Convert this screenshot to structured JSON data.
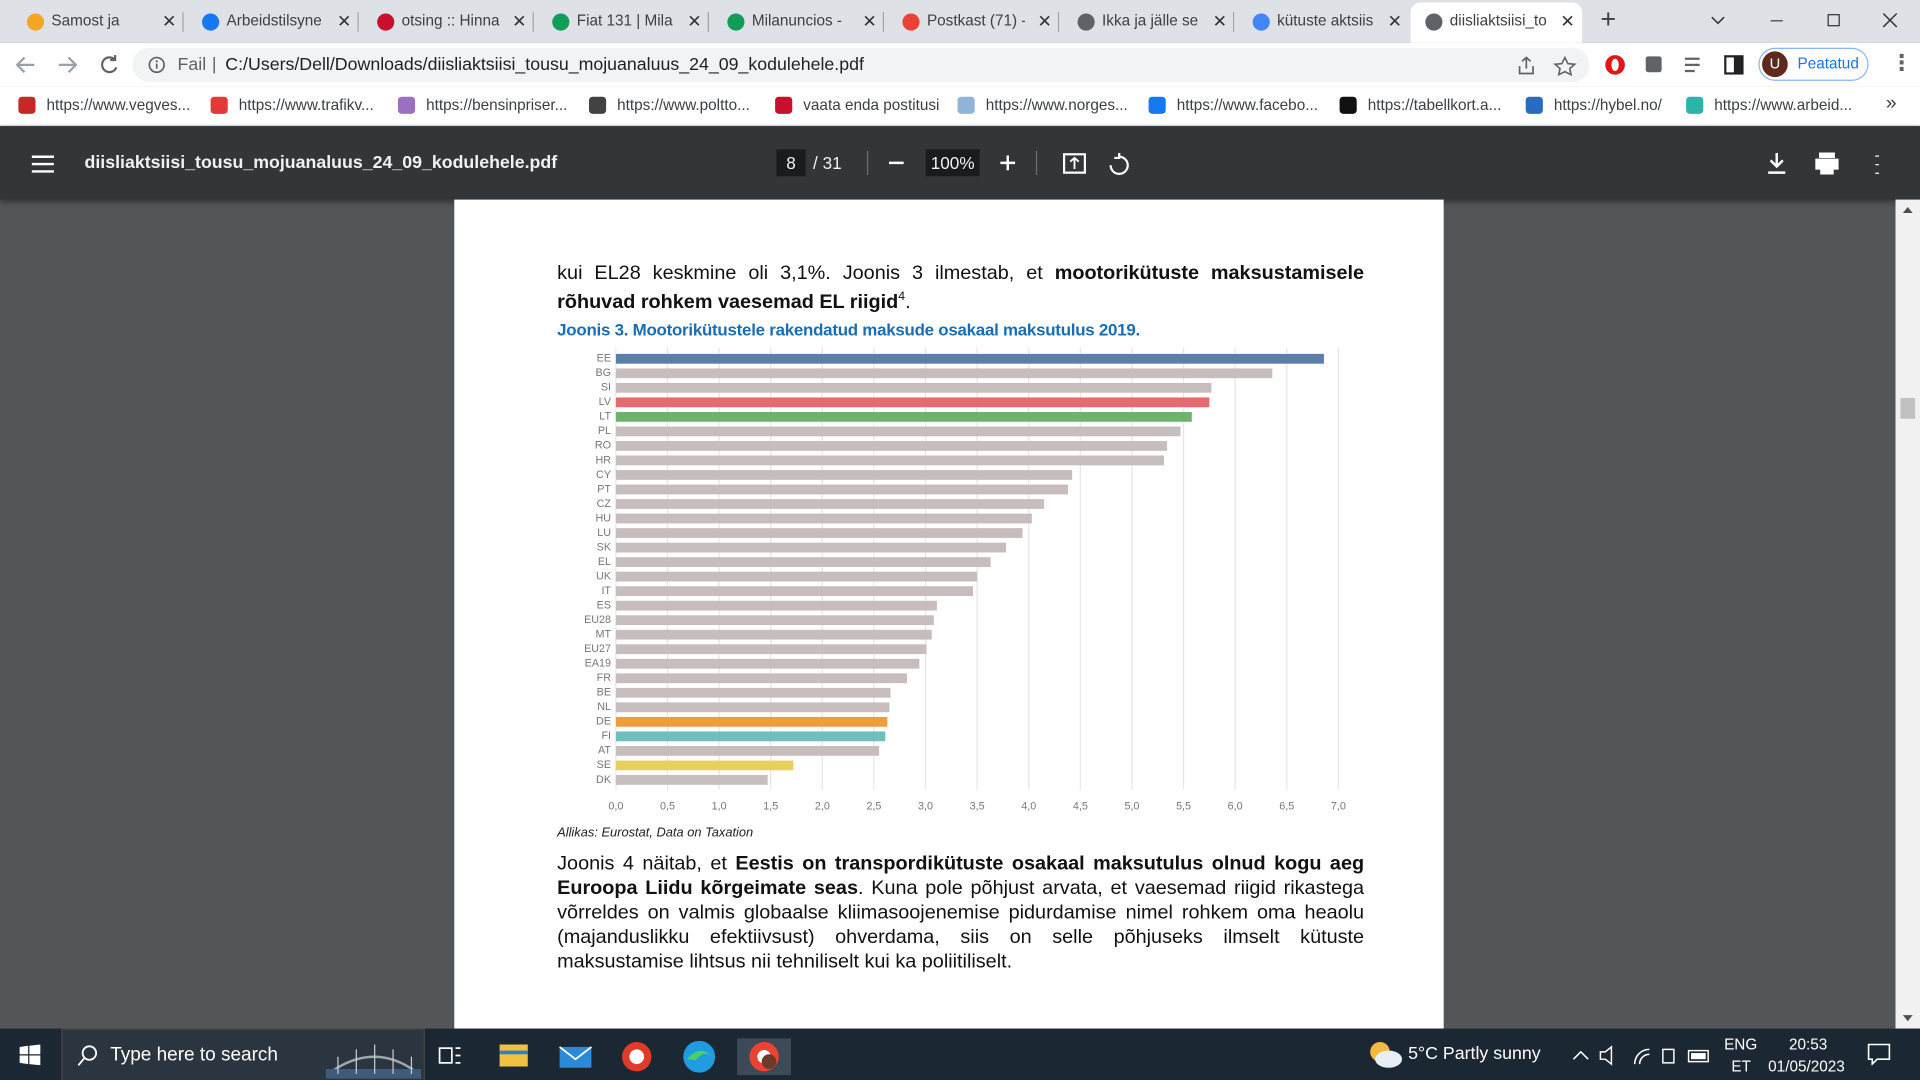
{
  "tabs": [
    "Samost ja",
    "Arbeidstilsyne",
    "otsing :: Hinna",
    "Fiat 131 | Mila",
    "Milanuncios -",
    "Postkast (71) -",
    "Ikka ja jälle se",
    "kütuste aktsiis",
    "diisliaktsiisi_to"
  ],
  "address": {
    "scheme": "Fail",
    "url": "C:/Users/Dell/Downloads/diisliaktsiisi_tousu_mojuanaluus_24_09_kodulehele.pdf"
  },
  "profile": "Peatatud",
  "bookmarks": [
    "https://www.vegves...",
    "https://www.trafikv...",
    "https://bensinpriser...",
    "https://www.poltto...",
    "vaata enda postitusi",
    "https://www.norges...",
    "https://www.facebo...",
    "https://tabellkort.a...",
    "https://hybel.no/",
    "https://www.arbeid..."
  ],
  "bookmarks_more": "»",
  "pdf_toolbar": {
    "filename": "diisliaktsiisi_tousu_mojuanaluus_24_09_kodulehele.pdf",
    "page": "8",
    "page_count": "/ 31",
    "zoom": "100%"
  },
  "document": {
    "paragraph1": [
      {
        "text": "kui EL28 keskmine oli 3,1%. Joonis 3 ilmestab, et ",
        "style": "normal"
      },
      {
        "text": "mootorikütuste maksustamisele rõhuvad rohkem vaesemad EL riigid",
        "style": "bold"
      },
      {
        "text": "4",
        "style": "sup"
      },
      {
        "text": ".",
        "style": "normal"
      }
    ],
    "figure": {
      "title": "Joonis 3. Mootorikütustele rakendatud maksude osakaal maksutulus 2019.",
      "chart": {
        "type": "bar",
        "orientation": "horizontal",
        "categories": [
          "EE",
          "BG",
          "SI",
          "LV",
          "LT",
          "PL",
          "RO",
          "HR",
          "CY",
          "PT",
          "CZ",
          "HU",
          "LU",
          "SK",
          "EL",
          "UK",
          "IT",
          "ES",
          "EU28",
          "MT",
          "EU27",
          "EA19",
          "FR",
          "BE",
          "NL",
          "DE",
          "FI",
          "AT",
          "SE",
          "DK"
        ],
        "values": [
          6.86,
          6.36,
          5.77,
          5.75,
          5.58,
          5.47,
          5.34,
          5.31,
          4.42,
          4.38,
          4.15,
          4.03,
          3.94,
          3.78,
          3.63,
          3.5,
          3.46,
          3.11,
          3.08,
          3.06,
          3.01,
          2.94,
          2.82,
          2.66,
          2.65,
          2.63,
          2.61,
          2.55,
          1.72,
          1.47
        ],
        "colors": [
          "#5b7eab",
          "#c8bdbd",
          "#c8bdbd",
          "#e56b6f",
          "#6db36b",
          "#c8bdbd",
          "#c8bdbd",
          "#c8bdbd",
          "#c8bdbd",
          "#c8bdbd",
          "#c8bdbd",
          "#c8bdbd",
          "#c8bdbd",
          "#c8bdbd",
          "#c8bdbd",
          "#c8bdbd",
          "#c8bdbd",
          "#c8bdbd",
          "#c8bdbd",
          "#c8bdbd",
          "#c8bdbd",
          "#c8bdbd",
          "#c8bdbd",
          "#c8bdbd",
          "#c8bdbd",
          "#ee9d3b",
          "#6fbfbd",
          "#c8bdbd",
          "#e8cf5e",
          "#c8bdbd"
        ],
        "xlim": [
          0,
          7
        ],
        "xticks": [
          {
            "value": 0,
            "label": "0,0"
          },
          {
            "value": 0.5,
            "label": "0,5"
          },
          {
            "value": 1,
            "label": "1,0"
          },
          {
            "value": 1.5,
            "label": "1,5"
          },
          {
            "value": 2,
            "label": "2,0"
          },
          {
            "value": 2.5,
            "label": "2,5"
          },
          {
            "value": 3,
            "label": "3,0"
          },
          {
            "value": 3.5,
            "label": "3,5"
          },
          {
            "value": 4,
            "label": "4,0"
          },
          {
            "value": 4.5,
            "label": "4,5"
          },
          {
            "value": 5,
            "label": "5,0"
          },
          {
            "value": 5.5,
            "label": "5,5"
          },
          {
            "value": 6,
            "label": "6,0"
          },
          {
            "value": 6.5,
            "label": "6,5"
          },
          {
            "value": 7,
            "label": "7,0"
          }
        ],
        "grid": true
      },
      "source": "Allikas: Eurostat, Data on Taxation"
    },
    "paragraph2": [
      {
        "text": "Joonis 4 näitab, et ",
        "style": "normal"
      },
      {
        "text": "Eestis on transpordikütuste osakaal maksutulus olnud kogu aeg Euroopa Liidu kõrgeimate seas",
        "style": "bold"
      },
      {
        "text": ". Kuna pole põhjust arvata, et vaesemad riigid rikastega võrreldes on valmis globaalse kliimasoojenemise pidurdamise nimel rohkem oma heaolu (majanduslikku efektiivsust) ohverdama, siis on selle põhjuseks ilmselt kütuste maksustamise lihtsus nii tehniliselt kui ka poliitiliselt.",
        "style": "normal"
      }
    ]
  },
  "taskbar": {
    "search": "Type here to search",
    "weather": "5°C  Partly sunny",
    "language": "ENG",
    "layout": "ET",
    "time": "20:53",
    "date": "01/05/2023"
  }
}
